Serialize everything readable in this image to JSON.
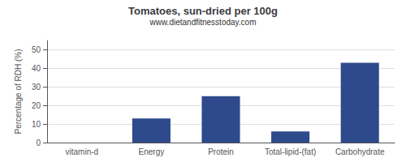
{
  "chart_data": {
    "type": "bar",
    "title": "Tomatoes, sun-dried per 100g",
    "subtitle": "www.dietandfitnesstoday.com",
    "ylabel": "Percentage of RDH (%)",
    "categories": [
      "vitamin-d",
      "Energy",
      "Protein",
      "Total-lipid-(fat)",
      "Carbohydrate"
    ],
    "values": [
      0,
      13,
      25,
      6,
      43
    ],
    "color": "#2e4a8c",
    "ylim": [
      0,
      55
    ],
    "yticks": [
      0,
      10,
      20,
      30,
      40,
      50
    ],
    "grid": true
  }
}
